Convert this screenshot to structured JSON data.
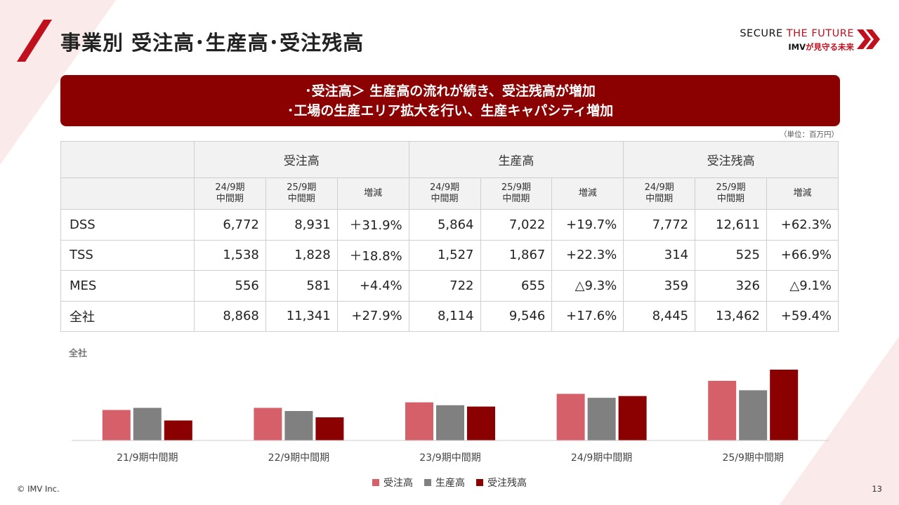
{
  "header": {
    "title": "事業別 受注高･生産高･受注残高",
    "brand_line1_a": "SECURE ",
    "brand_line1_b": "THE FUTURE",
    "brand_line2_a": "IMV",
    "brand_line2_b": "が見守る未来"
  },
  "banner": {
    "line1": "･受注高＞ 生産高の流れが続き、受注残高が増加",
    "line2": "･工場の生産エリア拡大を行い、生産キャパシティ増加"
  },
  "unit_note": "（単位：百万円）",
  "table": {
    "groups": [
      "受注高",
      "生産高",
      "受注残高"
    ],
    "sub_headers": [
      "24/9期\n中間期",
      "25/9期\n中間期",
      "増減"
    ],
    "rows": [
      {
        "label": "DSS",
        "values": [
          "6,772",
          "8,931",
          "＋31.9%",
          "5,864",
          "7,022",
          "+19.7%",
          "7,772",
          "12,611",
          "+62.3%"
        ]
      },
      {
        "label": "TSS",
        "values": [
          "1,538",
          "1,828",
          "＋18.8%",
          "1,527",
          "1,867",
          "+22.3%",
          "314",
          "525",
          "+66.9%"
        ]
      },
      {
        "label": "MES",
        "values": [
          "556",
          "581",
          "+4.4%",
          "722",
          "655",
          "△9.3%",
          "359",
          "326",
          "△9.1%"
        ]
      },
      {
        "label": "全社",
        "values": [
          "8,868",
          "11,341",
          "+27.9%",
          "8,114",
          "9,546",
          "+17.6%",
          "8,445",
          "13,462",
          "+59.4%"
        ]
      }
    ]
  },
  "chart_label": "全社",
  "chart_data": {
    "type": "bar",
    "categories": [
      "21/9期中間期",
      "22/9期中間期",
      "23/9期中間期",
      "24/9期中間期",
      "25/9期中間期"
    ],
    "series": [
      {
        "name": "受注高",
        "color": "#d5606a",
        "values": [
          5800,
          6200,
          7250,
          8868,
          11341
        ]
      },
      {
        "name": "生産高",
        "color": "#808080",
        "values": [
          6200,
          5600,
          6700,
          8114,
          9546
        ]
      },
      {
        "name": "受注残高",
        "color": "#8b0000",
        "values": [
          3800,
          4400,
          6450,
          8445,
          13462
        ]
      }
    ],
    "ylim": [
      0,
      16000
    ],
    "grid": false,
    "legend": "bottom-center"
  },
  "footer": {
    "copyright": "© IMV Inc.",
    "page_number": "13"
  },
  "colors": {
    "accent": "#8b0000",
    "brand_red": "#c0101d",
    "header_gray": "#f2f2f2"
  }
}
